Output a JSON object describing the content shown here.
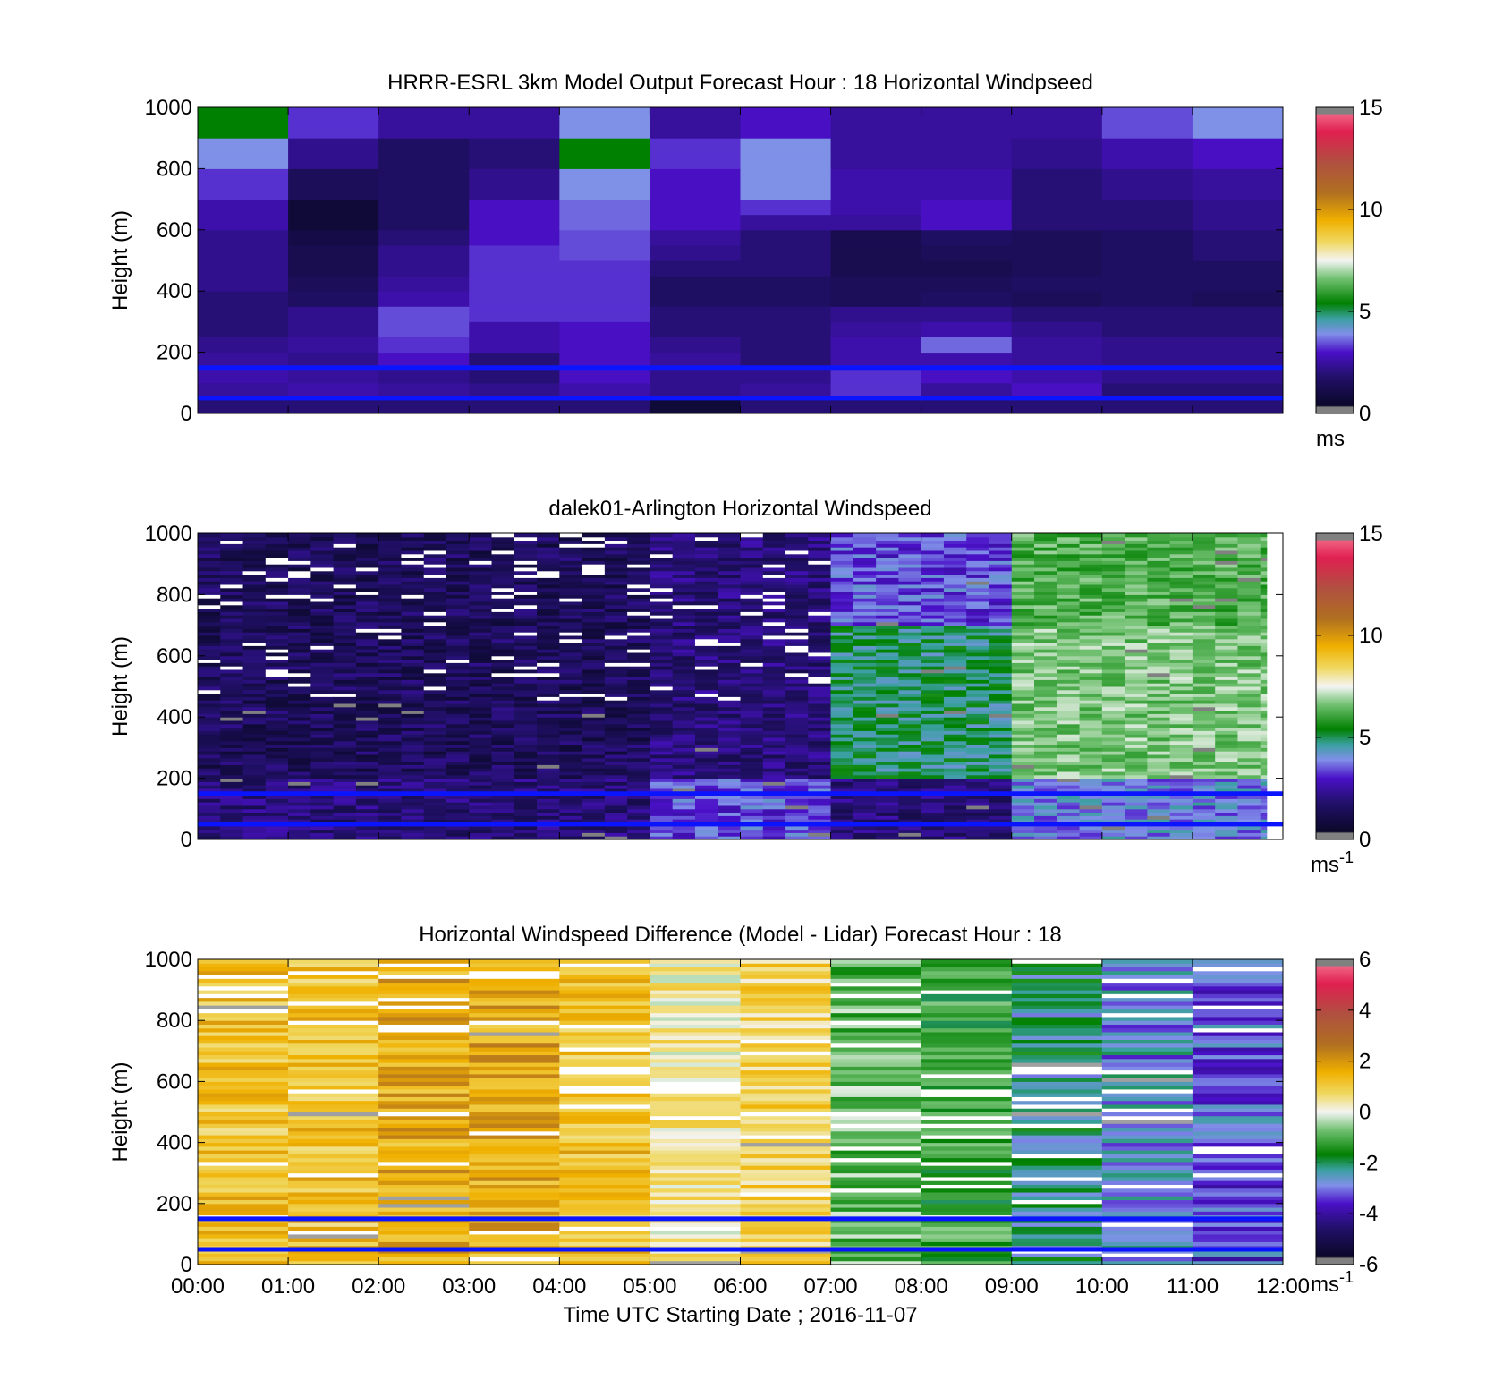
{
  "chart_data": [
    {
      "type": "heatmap",
      "title": "HRRR-ESRL 3km Model Output   Forecast Hour : 18 Horizontal Windpseed",
      "xlabel": "",
      "ylabel": "Height (m)",
      "ylim": [
        0,
        1000
      ],
      "y_ticks": [
        "0",
        "200",
        "400",
        "600",
        "800",
        "1000"
      ],
      "xlim_hours": [
        0,
        12
      ],
      "x_tick_labels_shown": false,
      "colorbar": {
        "ticks": [
          "0",
          "5",
          "10",
          "15"
        ],
        "range": [
          0,
          15
        ],
        "unit_label": "ms",
        "unit_superscript": ""
      },
      "hours": 12,
      "height_levels_m": [
        25,
        75,
        125,
        175,
        225,
        275,
        325,
        375,
        425,
        475,
        525,
        575,
        625,
        675,
        725,
        775,
        825,
        875,
        925,
        975
      ],
      "grid_values": [
        [
          1.5,
          1.5,
          1.5,
          1.5,
          1.5,
          0.3,
          1.5,
          1.5,
          1.5,
          1.5,
          1.5,
          1.5
        ],
        [
          2.0,
          2.2,
          2.0,
          1.8,
          2.2,
          1.8,
          2.0,
          2.8,
          2.0,
          2.5,
          1.5,
          1.5
        ],
        [
          2.2,
          2.0,
          1.8,
          1.5,
          2.5,
          1.8,
          1.8,
          2.8,
          2.5,
          2.2,
          1.8,
          1.8
        ],
        [
          2.0,
          1.8,
          2.5,
          1.5,
          2.5,
          2.0,
          1.5,
          2.2,
          2.2,
          2.0,
          1.8,
          1.8
        ],
        [
          1.8,
          2.0,
          2.8,
          2.2,
          2.5,
          1.8,
          1.5,
          2.2,
          3.2,
          2.0,
          1.8,
          1.8
        ],
        [
          1.5,
          1.8,
          3.0,
          2.2,
          2.5,
          1.5,
          1.5,
          2.0,
          2.2,
          1.8,
          1.5,
          1.5
        ],
        [
          1.5,
          1.8,
          3.0,
          2.8,
          2.8,
          1.5,
          1.5,
          1.8,
          1.8,
          1.5,
          1.5,
          1.5
        ],
        [
          1.5,
          1.2,
          2.2,
          2.8,
          2.8,
          1.2,
          1.2,
          1.0,
          1.2,
          1.0,
          1.2,
          1.0
        ],
        [
          1.8,
          1.0,
          2.0,
          2.8,
          2.8,
          1.2,
          1.2,
          1.0,
          1.0,
          1.2,
          1.2,
          1.2
        ],
        [
          1.8,
          0.8,
          1.8,
          2.8,
          2.8,
          1.5,
          1.5,
          0.8,
          0.8,
          1.0,
          1.2,
          1.2
        ],
        [
          1.8,
          0.8,
          1.8,
          2.8,
          3.0,
          1.8,
          1.5,
          0.8,
          1.0,
          1.0,
          1.2,
          1.5
        ],
        [
          1.8,
          0.6,
          1.5,
          2.5,
          3.0,
          2.0,
          1.5,
          0.8,
          1.2,
          1.0,
          1.2,
          1.5
        ],
        [
          2.2,
          0.3,
          1.2,
          2.5,
          3.2,
          2.5,
          2.0,
          2.0,
          2.5,
          1.5,
          1.5,
          1.8
        ],
        [
          2.2,
          0.3,
          1.2,
          2.5,
          3.2,
          2.5,
          2.8,
          2.2,
          2.5,
          1.5,
          1.5,
          1.8
        ],
        [
          2.8,
          1.0,
          1.2,
          1.8,
          3.5,
          2.5,
          3.5,
          2.2,
          2.2,
          1.5,
          1.8,
          2.0
        ],
        [
          2.8,
          1.0,
          1.2,
          1.8,
          3.5,
          2.5,
          3.5,
          2.2,
          2.2,
          1.5,
          1.8,
          2.0
        ],
        [
          3.5,
          1.8,
          1.2,
          1.5,
          5.0,
          2.8,
          3.5,
          2.0,
          2.0,
          1.8,
          2.2,
          2.5
        ],
        [
          3.5,
          1.8,
          1.2,
          1.5,
          5.0,
          2.8,
          3.5,
          2.0,
          2.0,
          1.8,
          2.2,
          2.5
        ],
        [
          5.0,
          2.8,
          2.0,
          2.0,
          3.5,
          2.0,
          2.5,
          2.0,
          2.0,
          2.0,
          3.0,
          3.5
        ],
        [
          5.0,
          2.8,
          2.0,
          2.0,
          3.5,
          2.0,
          2.5,
          2.0,
          2.0,
          2.0,
          3.0,
          3.5
        ]
      ],
      "reference_lines_m": [
        50,
        150
      ]
    },
    {
      "type": "heatmap",
      "title": "dalek01-Arlington  Horizontal Windspeed",
      "xlabel": "",
      "ylabel": "Height (m)",
      "ylim": [
        0,
        1000
      ],
      "y_ticks": [
        "0",
        "200",
        "400",
        "600",
        "800",
        "1000"
      ],
      "xlim_hours": [
        0,
        12
      ],
      "x_tick_labels_shown": false,
      "colorbar": {
        "ticks": [
          "0",
          "5",
          "10",
          "15"
        ],
        "range": [
          0,
          15
        ],
        "unit_label": "ms",
        "unit_superscript": "-1"
      },
      "approx_description_by_time": [
        {
          "hours": "00:00-05:00",
          "below_200m": 1.5,
          "200_700m": 1.0,
          "above_700m": 1.0
        },
        {
          "hours": "05:00-07:00",
          "below_200m": 3.0,
          "200_700m": 1.5,
          "above_700m": 1.5
        },
        {
          "hours": "07:00-09:00",
          "below_200m": 1.5,
          "200_700m": 4.5,
          "above_700m": 3.0
        },
        {
          "hours": "09:00-12:00",
          "below_200m": 3.5,
          "200_700m": 6.5,
          "above_700m": 6.0
        }
      ],
      "reference_lines_m": [
        50,
        150
      ]
    },
    {
      "type": "heatmap",
      "title": "Horizontal Windspeed Difference (Model - Lidar) Forecast Hour : 18",
      "xlabel": "Time UTC  Starting Date ; 2016-11-07",
      "ylabel": "Height (m)",
      "ylim": [
        0,
        1000
      ],
      "y_ticks": [
        "0",
        "200",
        "400",
        "600",
        "800",
        "1000"
      ],
      "xlim_hours": [
        0,
        12
      ],
      "x_ticks": [
        "00:00",
        "01:00",
        "02:00",
        "03:00",
        "04:00",
        "05:00",
        "06:00",
        "07:00",
        "08:00",
        "09:00",
        "10:00",
        "11:00",
        "12:00"
      ],
      "colorbar": {
        "ticks": [
          "-6",
          "-4",
          "-2",
          "0",
          "2",
          "4",
          "6"
        ],
        "range": [
          -6,
          6
        ],
        "unit_label": "ms",
        "unit_superscript": "-1"
      },
      "approx_mean_difference_by_hour": [
        1.5,
        1.5,
        2.0,
        2.0,
        1.5,
        0.5,
        1.0,
        -1.0,
        -1.5,
        -2.5,
        -3.0,
        -3.5
      ],
      "reference_lines_m": [
        50,
        150
      ]
    }
  ]
}
